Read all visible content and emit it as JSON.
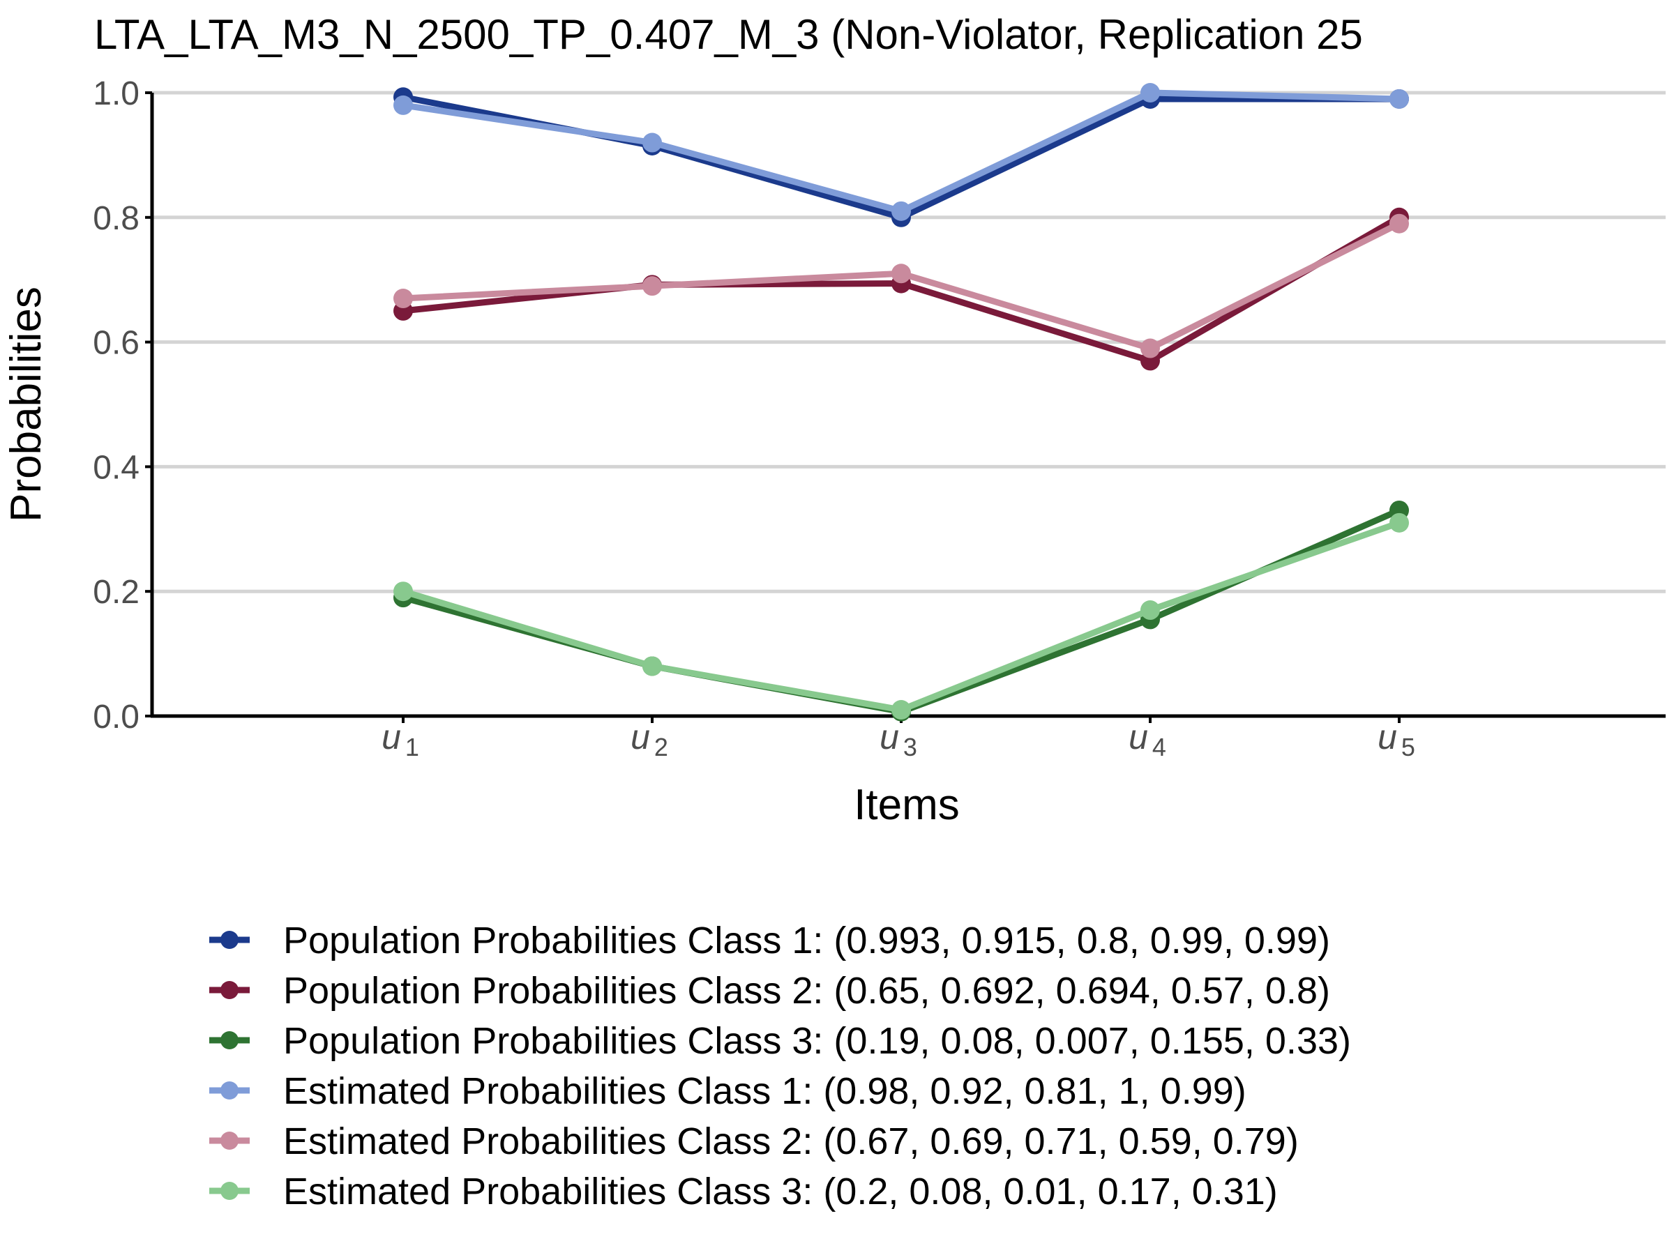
{
  "chart_data": {
    "type": "line",
    "title": "LTA_LTA_M3_N_2500_TP_0.407_M_3 (Non-Violator, Replication 25",
    "xlabel": "Items",
    "ylabel": "Probabilities",
    "categories": [
      {
        "base": "u",
        "sub": "1"
      },
      {
        "base": "u",
        "sub": "2"
      },
      {
        "base": "u",
        "sub": "3"
      },
      {
        "base": "u",
        "sub": "4"
      },
      {
        "base": "u",
        "sub": "5"
      }
    ],
    "yticks": [
      "0.0",
      "0.2",
      "0.4",
      "0.6",
      "0.8",
      "1.0"
    ],
    "ylim": [
      0,
      1
    ],
    "grid": "horizontal",
    "legend_position": "bottom",
    "series": [
      {
        "name": "Population Probabilities Class 1: (0.993, 0.915, 0.8, 0.99, 0.99)",
        "color": "#1b3a8c",
        "values": [
          0.993,
          0.915,
          0.8,
          0.99,
          0.99
        ]
      },
      {
        "name": "Population Probabilities Class 2: (0.65, 0.692, 0.694, 0.57, 0.8)",
        "color": "#7a1a3a",
        "values": [
          0.65,
          0.692,
          0.694,
          0.57,
          0.8
        ]
      },
      {
        "name": "Population Probabilities Class 3: (0.19, 0.08, 0.007, 0.155, 0.33)",
        "color": "#2e7332",
        "values": [
          0.19,
          0.08,
          0.007,
          0.155,
          0.33
        ]
      },
      {
        "name": "Estimated Probabilities Class 1: (0.98, 0.92, 0.81, 1, 0.99)",
        "color": "#7f9cd8",
        "values": [
          0.98,
          0.92,
          0.81,
          1,
          0.99
        ]
      },
      {
        "name": "Estimated Probabilities Class 2: (0.67, 0.69, 0.71, 0.59, 0.79)",
        "color": "#c98a9d",
        "values": [
          0.67,
          0.69,
          0.71,
          0.59,
          0.79
        ]
      },
      {
        "name": "Estimated Probabilities Class 3: (0.2, 0.08, 0.01, 0.17, 0.31)",
        "color": "#88c98e",
        "values": [
          0.2,
          0.08,
          0.01,
          0.17,
          0.31
        ]
      }
    ]
  }
}
